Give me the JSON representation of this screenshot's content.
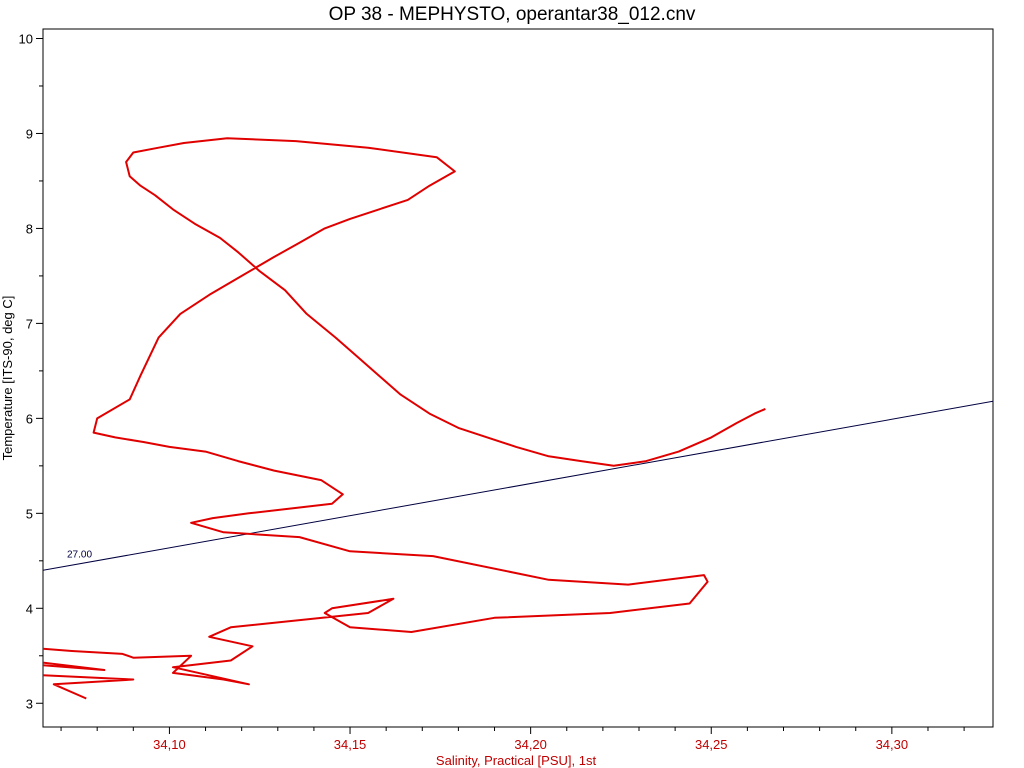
{
  "chart_data": {
    "type": "line",
    "title": "OP 38 - MEPHYSTO, operantar38_012.cnv",
    "xlabel": "Salinity, Practical [PSU], 1st",
    "ylabel": "Temperature [ITS-90, deg C]",
    "xlim": [
      34.065,
      34.328
    ],
    "ylim": [
      2.75,
      10.1
    ],
    "x_ticks": [
      34.1,
      34.15,
      34.2,
      34.25,
      34.3
    ],
    "x_tick_labels": [
      "34,10",
      "34,15",
      "34,20",
      "34,25",
      "34,30"
    ],
    "y_ticks": [
      3,
      4,
      5,
      6,
      7,
      8,
      9,
      10
    ],
    "y_tick_labels": [
      "3",
      "4",
      "5",
      "6",
      "7",
      "8",
      "9",
      "10"
    ],
    "grid": false,
    "isopycnal": {
      "label": "27.00",
      "x": [
        34.065,
        34.328
      ],
      "y": [
        4.4,
        6.18
      ],
      "color": "#000040"
    },
    "series": [
      {
        "color": "#e00000",
        "x": [
          34.077,
          34.068,
          34.09,
          34.062,
          34.065,
          34.082,
          34.06,
          34.056,
          34.073,
          34.087,
          34.09,
          34.106,
          34.101,
          34.115,
          34.122,
          34.101,
          34.117,
          34.123,
          34.111,
          34.117,
          34.155,
          34.162,
          34.145,
          34.143,
          34.15,
          34.167,
          34.19,
          34.222,
          34.244,
          34.249,
          34.248,
          34.227,
          34.205,
          34.173,
          34.15,
          34.136,
          34.115,
          34.106,
          34.112,
          34.122,
          34.145,
          34.148,
          34.142,
          34.129,
          34.119,
          34.11,
          34.1,
          34.093,
          34.085,
          34.079,
          34.08,
          34.089,
          34.092,
          34.097,
          34.103,
          34.111,
          34.12,
          34.129,
          34.136,
          34.143,
          34.15,
          34.158,
          34.166,
          34.172,
          34.179,
          34.174,
          34.155,
          34.135,
          34.116,
          34.104,
          34.097,
          34.09,
          34.088,
          34.089,
          34.092,
          34.096,
          34.101,
          34.107,
          34.114,
          34.119,
          34.125,
          34.132,
          34.138,
          34.146,
          34.152,
          34.158,
          34.164,
          34.172,
          34.18,
          34.188,
          34.196,
          34.205,
          34.214,
          34.223,
          34.232,
          34.241,
          34.25,
          34.257,
          34.262,
          34.265
        ],
        "y": [
          3.05,
          3.2,
          3.25,
          3.3,
          3.4,
          3.35,
          3.45,
          3.6,
          3.55,
          3.52,
          3.48,
          3.5,
          3.32,
          3.25,
          3.2,
          3.38,
          3.45,
          3.6,
          3.7,
          3.8,
          3.95,
          4.1,
          4.0,
          3.95,
          3.8,
          3.75,
          3.9,
          3.95,
          4.05,
          4.28,
          4.35,
          4.25,
          4.3,
          4.55,
          4.6,
          4.75,
          4.8,
          4.9,
          4.95,
          5.0,
          5.1,
          5.2,
          5.35,
          5.45,
          5.55,
          5.65,
          5.7,
          5.75,
          5.8,
          5.85,
          6.0,
          6.2,
          6.45,
          6.85,
          7.1,
          7.3,
          7.5,
          7.7,
          7.85,
          8.0,
          8.1,
          8.2,
          8.3,
          8.45,
          8.6,
          8.75,
          8.85,
          8.92,
          8.95,
          8.9,
          8.85,
          8.8,
          8.7,
          8.55,
          8.45,
          8.35,
          8.2,
          8.05,
          7.9,
          7.75,
          7.55,
          7.35,
          7.1,
          6.85,
          6.65,
          6.45,
          6.25,
          6.05,
          5.9,
          5.8,
          5.7,
          5.6,
          5.55,
          5.5,
          5.55,
          5.65,
          5.8,
          5.95,
          6.05,
          6.1
        ]
      }
    ]
  }
}
